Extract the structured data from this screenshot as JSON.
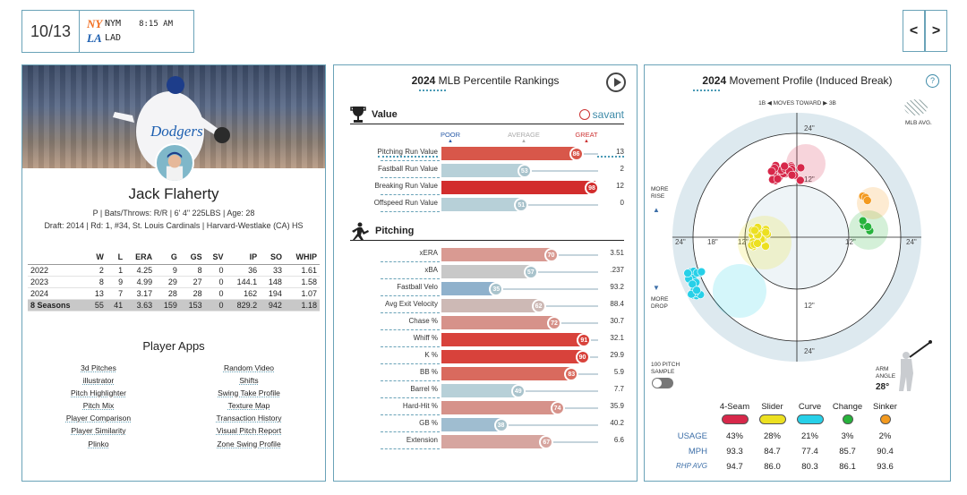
{
  "game": {
    "date": "10/13",
    "away": "NYM",
    "home": "LAD",
    "time": "8:15 AM"
  },
  "nav": {
    "prev": "<",
    "next": ">"
  },
  "player": {
    "name": "Jack Flaherty",
    "info": "P | Bats/Throws: R/R | 6' 4\" 225LBS | Age: 28",
    "draft": "Draft: 2014 | Rd: 1, #34, St. Louis Cardinals | Harvard-Westlake (CA) HS"
  },
  "stats": {
    "headers": [
      "",
      "W",
      "L",
      "ERA",
      "G",
      "GS",
      "SV",
      "IP",
      "SO",
      "WHIP"
    ],
    "rows": [
      [
        "2022",
        "2",
        "1",
        "4.25",
        "9",
        "8",
        "0",
        "36",
        "33",
        "1.61"
      ],
      [
        "2023",
        "8",
        "9",
        "4.99",
        "29",
        "27",
        "0",
        "144.1",
        "148",
        "1.58"
      ],
      [
        "2024",
        "13",
        "7",
        "3.17",
        "28",
        "28",
        "0",
        "162",
        "194",
        "1.07"
      ],
      [
        "8 Seasons",
        "55",
        "41",
        "3.63",
        "159",
        "153",
        "0",
        "829.2",
        "942",
        "1.18"
      ]
    ]
  },
  "apps": {
    "title": "Player Apps",
    "left": [
      "3d Pitches",
      "illustrator",
      "Pitch Highlighter",
      "Pitch Mix",
      "Player Comparison",
      "Player Similarity",
      "Plinko"
    ],
    "right": [
      "Random Video",
      "Shifts",
      "Swing Take Profile",
      "Texture Map",
      "Transaction History",
      "Visual Pitch Report",
      "Zone Swing Profile"
    ]
  },
  "percentile": {
    "year": "2024",
    "title": "MLB Percentile Rankings",
    "value_section": "Value",
    "pitching_section": "Pitching",
    "brand": "savant",
    "scale": {
      "poor": "POOR",
      "average": "AVERAGE",
      "great": "GREAT"
    },
    "value_rows": [
      {
        "label": "Pitching Run Value",
        "pct": 86,
        "value": "13",
        "color": "#d8574a"
      },
      {
        "label": "Fastball Run Value",
        "pct": 53,
        "value": "2",
        "color": "#b7d0d8"
      },
      {
        "label": "Breaking Run Value",
        "pct": 98,
        "value": "12",
        "color": "#d22d2d"
      },
      {
        "label": "Offspeed Run Value",
        "pct": 51,
        "value": "0",
        "color": "#b7d0d8"
      }
    ],
    "pitching_rows": [
      {
        "label": "xERA",
        "pct": 70,
        "value": "3.51",
        "color": "#d99a92"
      },
      {
        "label": "xBA",
        "pct": 57,
        "value": ".237",
        "color": "#c8c8c8"
      },
      {
        "label": "Fastball Velo",
        "pct": 35,
        "value": "93.2",
        "color": "#8fb1cc"
      },
      {
        "label": "Avg Exit Velocity",
        "pct": 62,
        "value": "88.4",
        "color": "#cdb9b5"
      },
      {
        "label": "Chase %",
        "pct": 72,
        "value": "30.7",
        "color": "#d6928a"
      },
      {
        "label": "Whiff %",
        "pct": 91,
        "value": "32.1",
        "color": "#d8423b"
      },
      {
        "label": "K %",
        "pct": 90,
        "value": "29.9",
        "color": "#d8423b"
      },
      {
        "label": "BB %",
        "pct": 83,
        "value": "5.9",
        "color": "#d96a5e"
      },
      {
        "label": "Barrel %",
        "pct": 49,
        "value": "7.7",
        "color": "#b7d0d8"
      },
      {
        "label": "Hard-Hit %",
        "pct": 74,
        "value": "35.9",
        "color": "#d6928a"
      },
      {
        "label": "GB %",
        "pct": 38,
        "value": "40.2",
        "color": "#9fbdd0"
      },
      {
        "label": "Extension",
        "pct": 67,
        "value": "6.6",
        "color": "#d6a59f"
      }
    ]
  },
  "movement": {
    "year": "2024",
    "title": "Movement Profile (Induced Break)",
    "help": "?",
    "moves_toward": "1B ◀ MOVES TOWARD ▶ 3B",
    "mlb_avg": "MLB AVG.",
    "more_rise": "MORE RISE",
    "more_drop": "MORE DROP",
    "sample": "100 PITCH SAMPLE",
    "arm_angle_label": "ARM ANGLE",
    "arm_angle": "28°",
    "ring_labels": {
      "top24": "24\"",
      "top12": "12\"",
      "bot12": "12\"",
      "bot24": "24\"",
      "l24": "24\"",
      "l18": "18\"",
      "l12": "12\"",
      "r12": "12\"",
      "r24": "24\""
    },
    "row_labels": {
      "usage": "USAGE",
      "mph": "MPH",
      "rhp": "RHP AVG"
    },
    "pitches": [
      {
        "name": "4-Seam",
        "color": "#d7284a",
        "usage": "43%",
        "mph": "93.3",
        "rhp": "94.7"
      },
      {
        "name": "Slider",
        "color": "#ece021",
        "usage": "28%",
        "mph": "84.7",
        "rhp": "86.0"
      },
      {
        "name": "Curve",
        "color": "#27d0e8",
        "usage": "21%",
        "mph": "77.4",
        "rhp": "80.3"
      },
      {
        "name": "Change",
        "color": "#27b33c",
        "usage": "3%",
        "mph": "85.7",
        "rhp": "86.1"
      },
      {
        "name": "Sinker",
        "color": "#f39a1f",
        "usage": "2%",
        "mph": "90.4",
        "rhp": "93.6"
      }
    ]
  }
}
